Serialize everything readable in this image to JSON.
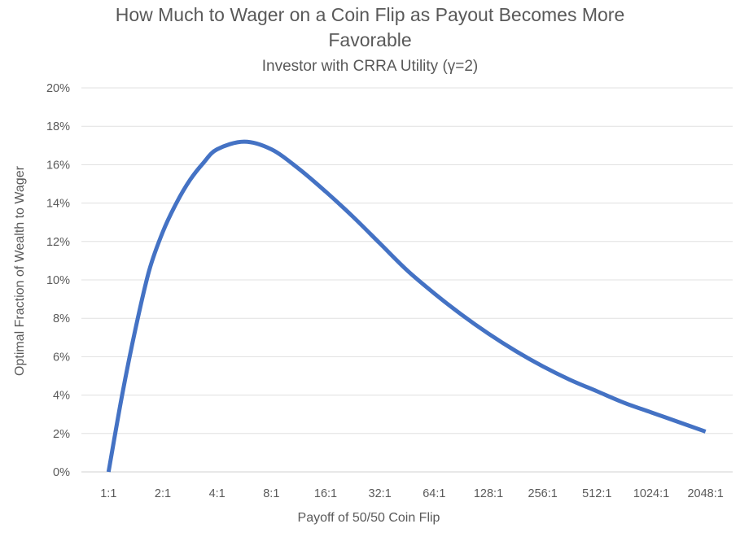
{
  "chart_data": {
    "type": "line",
    "title": "How Much to Wager on a Coin Flip as Payout Becomes More Favorable",
    "title_lines": [
      "How Much to Wager on a Coin Flip as Payout Becomes More",
      "Favorable"
    ],
    "subtitle": "Investor with CRRA Utility (γ=2)",
    "xlabel": "Payoff of 50/50 Coin Flip",
    "ylabel": "Optimal Fraction of Wealth to Wager",
    "categories": [
      "1:1",
      "2:1",
      "4:1",
      "8:1",
      "16:1",
      "32:1",
      "64:1",
      "128:1",
      "256:1",
      "512:1",
      "1024:1",
      "2048:1"
    ],
    "y_ticks": [
      "0%",
      "2%",
      "4%",
      "6%",
      "8%",
      "10%",
      "12%",
      "14%",
      "16%",
      "18%",
      "20%"
    ],
    "ylim": [
      0,
      20
    ],
    "grid": true,
    "legend": "none",
    "series": [
      {
        "color": "#4472C4",
        "x": [
          0,
          0.25,
          0.5,
          0.75,
          1,
          1.25,
          1.5,
          1.75,
          2,
          2.5,
          3,
          3.5,
          4,
          4.5,
          5,
          5.5,
          6,
          6.5,
          7,
          7.5,
          8,
          8.5,
          9,
          9.5,
          10,
          10.5,
          11
        ],
        "y": [
          0,
          4.0,
          7.5,
          10.5,
          12.5,
          14.0,
          15.2,
          16.1,
          16.8,
          17.2,
          16.8,
          15.8,
          14.6,
          13.3,
          11.9,
          10.5,
          9.3,
          8.2,
          7.2,
          6.3,
          5.5,
          4.8,
          4.2,
          3.6,
          3.1,
          2.6,
          2.1
        ]
      }
    ]
  }
}
